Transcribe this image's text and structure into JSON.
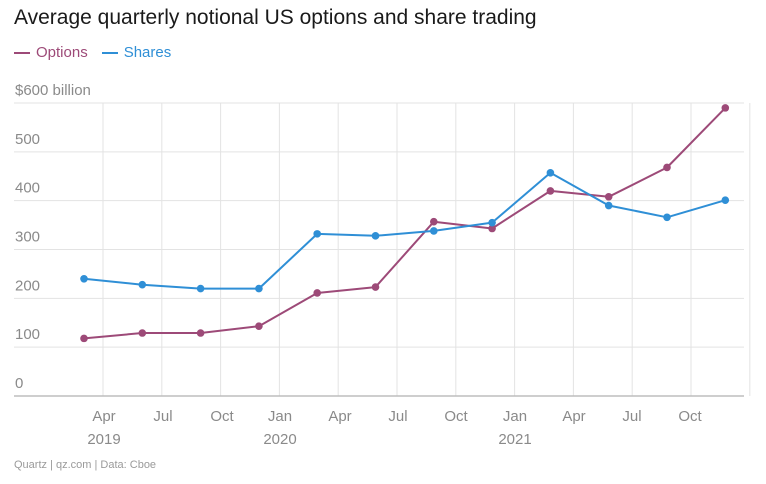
{
  "title": "Average quarterly notional US options and share trading",
  "source": "Quartz | qz.com | Data: Cboe",
  "colors": {
    "options": "#9d4a78",
    "shares": "#2f8fd6",
    "grid": "#e3e3e3",
    "axis": "#bdbdbd"
  },
  "chart_data": {
    "type": "line",
    "title": "Average quarterly notional US options and share trading",
    "xlabel": "",
    "ylabel": "",
    "y_tick_labels": [
      "0",
      "100",
      "200",
      "300",
      "400",
      "500",
      "$600 billion"
    ],
    "y_ticks": [
      0,
      100,
      200,
      300,
      400,
      500,
      600
    ],
    "ylim": [
      0,
      600
    ],
    "x_tick_labels": [
      "Apr",
      "Jul",
      "Oct",
      "Jan",
      "Apr",
      "Jul",
      "Oct",
      "Jan",
      "Apr",
      "Jul",
      "Oct"
    ],
    "year_labels": [
      "2019",
      "2020",
      "2021"
    ],
    "x": [
      "2019-Q1",
      "2019-Q2",
      "2019-Q3",
      "2019-Q4",
      "2020-Q1",
      "2020-Q2",
      "2020-Q3",
      "2020-Q4",
      "2021-Q1",
      "2021-Q2",
      "2021-Q3",
      "2021-Q4"
    ],
    "grid": true,
    "legend_position": "top-left",
    "series": [
      {
        "name": "Options",
        "color": "#9d4a78",
        "values": [
          118,
          129,
          129,
          143,
          211,
          223,
          357,
          343,
          420,
          408,
          468,
          590
        ]
      },
      {
        "name": "Shares",
        "color": "#2f8fd6",
        "values": [
          240,
          228,
          220,
          220,
          332,
          328,
          338,
          355,
          457,
          390,
          366,
          401
        ]
      }
    ]
  }
}
